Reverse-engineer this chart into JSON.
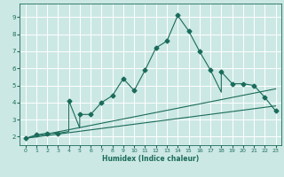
{
  "title": "",
  "xlabel": "Humidex (Indice chaleur)",
  "bg_color": "#cce8e4",
  "grid_color": "#ffffff",
  "line_color": "#1a6b5a",
  "xlim": [
    -0.5,
    23.5
  ],
  "ylim": [
    1.5,
    9.8
  ],
  "xticks": [
    0,
    1,
    2,
    3,
    4,
    5,
    6,
    7,
    8,
    9,
    10,
    11,
    12,
    13,
    14,
    15,
    16,
    17,
    18,
    19,
    20,
    21,
    22,
    23
  ],
  "yticks": [
    2,
    3,
    4,
    5,
    6,
    7,
    8,
    9
  ],
  "line1_x": [
    0,
    1,
    2,
    3,
    4,
    4,
    5,
    5,
    6,
    7,
    8,
    9,
    10,
    11,
    12,
    13,
    14,
    15,
    16,
    17,
    18,
    18,
    19,
    20,
    21,
    22,
    23
  ],
  "line1_y": [
    1.9,
    2.1,
    2.2,
    2.2,
    2.3,
    4.1,
    2.5,
    3.3,
    3.3,
    4.0,
    4.4,
    5.4,
    4.7,
    5.9,
    7.2,
    7.6,
    9.1,
    8.2,
    7.0,
    5.9,
    4.6,
    5.8,
    5.1,
    5.1,
    5.0,
    4.3,
    3.5
  ],
  "line2_x": [
    0,
    23
  ],
  "line2_y": [
    1.9,
    4.8
  ],
  "line3_x": [
    0,
    23
  ],
  "line3_y": [
    1.9,
    3.8
  ],
  "markers_x": [
    0,
    1,
    2,
    3,
    4,
    5,
    6,
    7,
    8,
    9,
    10,
    11,
    12,
    13,
    14,
    15,
    16,
    17,
    18,
    19,
    20,
    21,
    22,
    23
  ],
  "markers_y": [
    1.9,
    2.1,
    2.2,
    2.2,
    4.1,
    3.3,
    3.3,
    4.0,
    4.4,
    5.4,
    4.7,
    5.9,
    7.2,
    7.6,
    9.1,
    8.2,
    7.0,
    5.9,
    5.8,
    5.1,
    5.1,
    5.0,
    4.3,
    3.5
  ],
  "marker_size": 2.5,
  "linewidth": 0.8
}
